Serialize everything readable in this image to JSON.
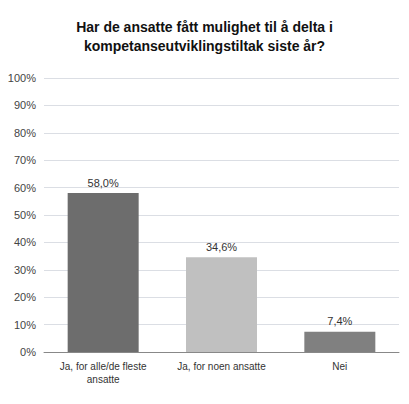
{
  "chart_data": {
    "type": "bar",
    "title": "Har de ansatte fått mulighet til å delta i\nkompetanseutviklingstiltak siste år?",
    "categories": [
      "Ja, for alle/de fleste\nansatte",
      "Ja, for noen ansatte",
      "Nei"
    ],
    "values": [
      58.0,
      34.6,
      7.4
    ],
    "value_labels": [
      "58,0%",
      "34,6%",
      "7,4%"
    ],
    "data_labels": true,
    "colors": [
      "#6d6d6d",
      "#c0c0c0",
      "#808080"
    ],
    "ylim": [
      0,
      100
    ],
    "yticks": [
      {
        "value": 0,
        "label": "0%"
      },
      {
        "value": 10,
        "label": "10%"
      },
      {
        "value": 20,
        "label": "20%"
      },
      {
        "value": 30,
        "label": "30%"
      },
      {
        "value": 40,
        "label": "40%"
      },
      {
        "value": 50,
        "label": "50%"
      },
      {
        "value": 60,
        "label": "60%"
      },
      {
        "value": 70,
        "label": "70%"
      },
      {
        "value": 80,
        "label": "80%"
      },
      {
        "value": 90,
        "label": "90%"
      },
      {
        "value": 100,
        "label": "100%"
      }
    ],
    "grid": true
  }
}
